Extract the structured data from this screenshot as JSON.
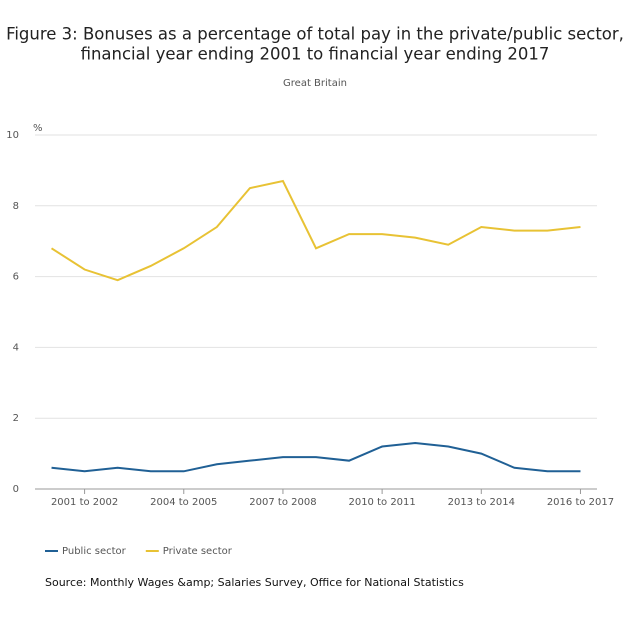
{
  "chart_data": {
    "type": "line",
    "title": [
      "Figure 3: Bonuses as a percentage of total pay in the private/public sector,",
      "financial year ending 2001 to financial year ending 2017"
    ],
    "subtitle": "Great Britain",
    "y_label": "%",
    "categories": [
      null,
      "2001 to 2002",
      null,
      null,
      "2004 to 2005",
      null,
      null,
      "2007 to 2008",
      null,
      null,
      "2010 to 2011",
      null,
      null,
      "2013 to 2014",
      null,
      null,
      "2016 to 2017"
    ],
    "series": [
      {
        "name": "Public sector",
        "color": "#206095",
        "values": [
          0.6,
          0.5,
          0.6,
          0.5,
          0.5,
          0.7,
          0.8,
          0.9,
          0.9,
          0.8,
          1.2,
          1.3,
          1.2,
          1.0,
          0.6,
          0.5,
          0.5
        ]
      },
      {
        "name": "Private sector",
        "color": "#e8c234",
        "values": [
          6.8,
          6.2,
          5.9,
          6.3,
          6.8,
          7.4,
          8.5,
          8.7,
          6.8,
          7.2,
          7.2,
          7.1,
          6.9,
          7.4,
          7.3,
          7.3,
          7.4
        ]
      }
    ],
    "ylim": [
      0,
      10
    ],
    "yticks": [
      0,
      2,
      4,
      6,
      8,
      10
    ],
    "grid": true,
    "legend": "bottom-left",
    "source": "Source: Monthly Wages &amp; Salaries Survey, Office for National Statistics"
  }
}
